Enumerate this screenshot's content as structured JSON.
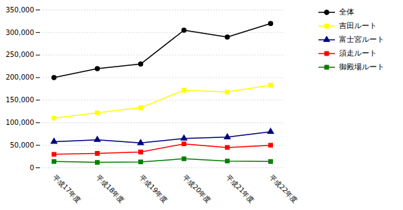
{
  "chart_data": {
    "type": "line",
    "categories": [
      "平成17年度",
      "平成18年度",
      "平成19年度",
      "平成20年度",
      "平成21年度",
      "平成22年度"
    ],
    "series": [
      {
        "name": "全体",
        "color": "#000000",
        "marker": "circle",
        "values": [
          200000,
          220000,
          230000,
          305000,
          290000,
          320000
        ]
      },
      {
        "name": "吉田ルート",
        "color": "#FFFF00",
        "marker": "square",
        "values": [
          110000,
          122000,
          133000,
          172000,
          168000,
          183000
        ]
      },
      {
        "name": "富士宮ルート",
        "color": "#000080",
        "marker": "triangle",
        "values": [
          58000,
          62000,
          55000,
          65000,
          68000,
          80000
        ]
      },
      {
        "name": "須走ルート",
        "color": "#FF0000",
        "marker": "square",
        "values": [
          30000,
          32000,
          35000,
          53000,
          45000,
          50000
        ]
      },
      {
        "name": "御殿場ルート",
        "color": "#008000",
        "marker": "square",
        "values": [
          14000,
          12000,
          13000,
          20000,
          15000,
          14000
        ]
      }
    ],
    "ylim": [
      0,
      350000
    ],
    "yticks": [
      0,
      {
        "value": 50000,
        "label": "50,000"
      },
      {
        "value": 100000,
        "label": "100,000"
      },
      {
        "value": 150000,
        "label": "150,000"
      },
      {
        "value": 200000,
        "label": "200,000"
      },
      {
        "value": 250000,
        "label": "250,000"
      },
      {
        "value": 300000,
        "label": "300,000"
      },
      {
        "value": 350000,
        "label": "350,000"
      }
    ],
    "grid": true,
    "legend": "right"
  }
}
